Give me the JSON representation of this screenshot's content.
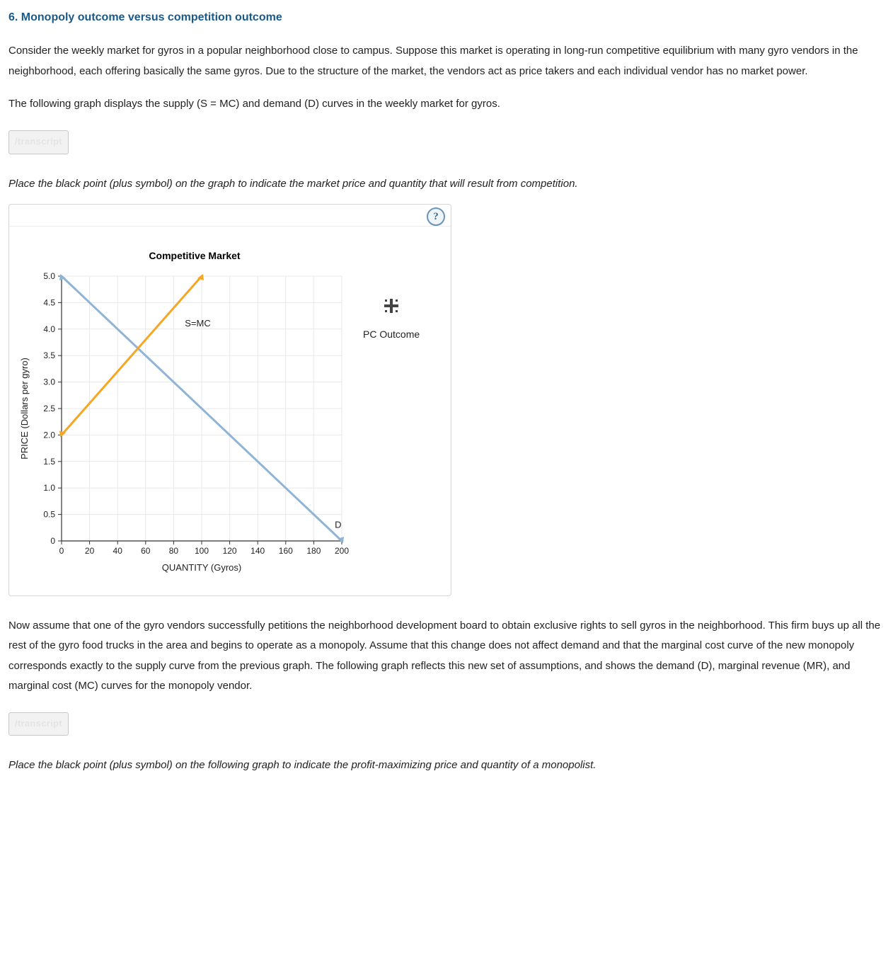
{
  "heading": "6. Monopoly outcome versus competition outcome",
  "para1": "Consider the weekly market for gyros in a popular neighborhood close to campus. Suppose this market is operating in long-run competitive equilibrium with many gyro vendors in the neighborhood, each offering basically the same gyros. Due to the structure of the market, the vendors act as price takers and each individual vendor has no market power.",
  "para2": "The following graph displays the supply (S = MC) and demand (D) curves in the weekly market for gyros.",
  "transcript_label": "/transcript",
  "instruction1": "Place the black point (plus symbol) on the graph to indicate the market price and quantity that will result from competition.",
  "para3": "Now assume that one of the gyro vendors successfully petitions the neighborhood development board to obtain exclusive rights to sell gyros in the neighborhood. This firm buys up all the rest of the gyro food trucks in the area and begins to operate as a monopoly. Assume that this change does not affect demand and that the marginal cost curve of the new monopoly corresponds exactly to the supply curve from the previous graph. The following graph reflects this new set of assumptions, and shows the demand (D), marginal revenue (MR), and marginal cost (MC) curves for the monopoly vendor.",
  "instruction2": "Place the black point (plus symbol) on the following graph to indicate the profit-maximizing price and quantity of a monopolist.",
  "help_icon": "?",
  "chart": {
    "type": "line",
    "title": "Competitive Market",
    "title_fontsize": 14,
    "title_fontweight": "bold",
    "xlabel": "QUANTITY (Gyros)",
    "ylabel": "PRICE (Dollars per gyro)",
    "label_fontsize": 13,
    "tick_fontsize": 12,
    "xlim": [
      0,
      200
    ],
    "ylim": [
      0,
      5.0
    ],
    "xticks": [
      0,
      20,
      40,
      60,
      80,
      100,
      120,
      140,
      160,
      180,
      200
    ],
    "yticks": [
      0,
      0.5,
      1.0,
      1.5,
      2.0,
      2.5,
      3.0,
      3.5,
      4.0,
      4.5,
      5.0
    ],
    "ytick_labels": [
      "0",
      "0.5",
      "1.0",
      "1.5",
      "2.0",
      "2.5",
      "3.0",
      "3.5",
      "4.0",
      "4.5",
      "5.0"
    ],
    "grid_color": "#e8e8e8",
    "axis_color": "#333333",
    "background_color": "#ffffff",
    "series": {
      "demand": {
        "label": "D",
        "color": "#8fb4d6",
        "width": 3,
        "points": [
          [
            0,
            5.0
          ],
          [
            200,
            0
          ]
        ],
        "label_pos": [
          195,
          0.25
        ]
      },
      "supply": {
        "label": "S=MC",
        "color": "#f5a623",
        "width": 3,
        "points": [
          [
            0,
            2.0
          ],
          [
            100,
            5.0
          ]
        ],
        "label_pos": [
          88,
          4.05
        ]
      }
    },
    "tool": {
      "label": "PC Outcome",
      "marker_color": "#444444"
    }
  }
}
